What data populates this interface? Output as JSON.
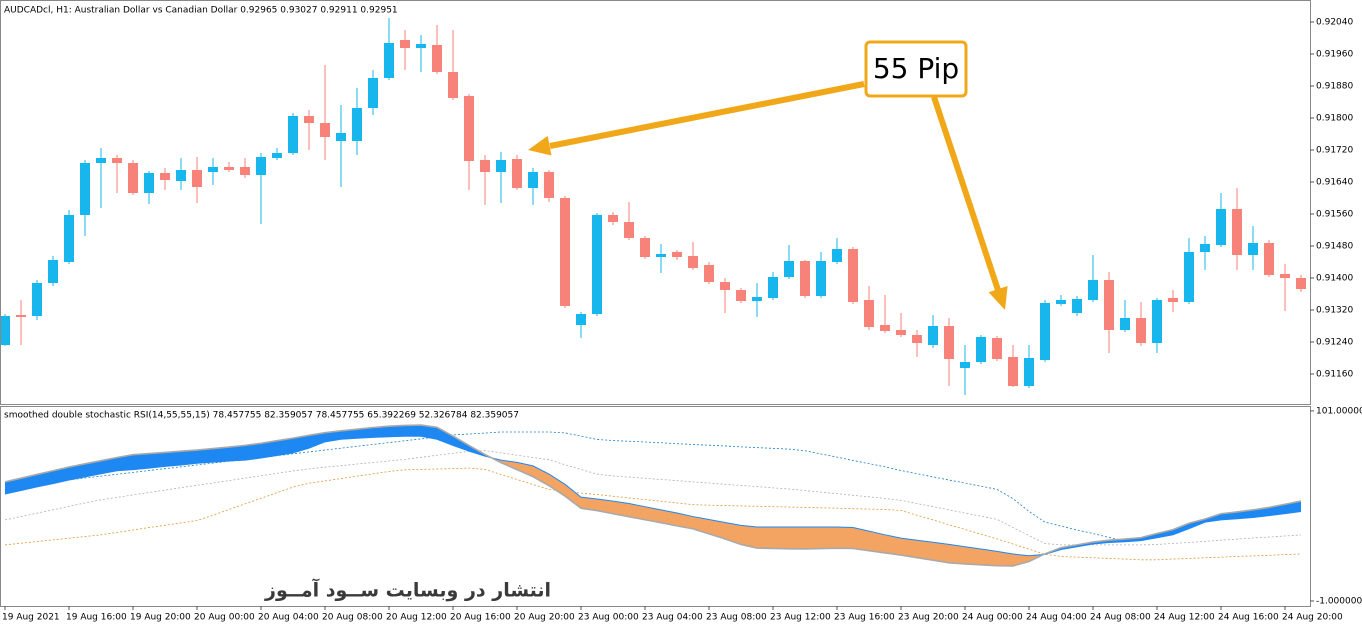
{
  "chart_data": [
    {
      "type": "candlestick",
      "title": "AUDCADcl, H1:  Australian Dollar vs Canadian Dollar  0.92965 0.93027 0.92911 0.92951",
      "annotations": [
        "55 Pip",
        "انتشار در وبسایت  ســود آمــوز"
      ],
      "categories": [
        "19 Aug 2021",
        null,
        null,
        null,
        "19 Aug 16:00",
        null,
        null,
        null,
        "19 Aug 20:00",
        null,
        null,
        null,
        "20 Aug 00:00",
        null,
        null,
        null,
        "20 Aug 04:00",
        null,
        null,
        null,
        "20 Aug 08:00",
        null,
        null,
        null,
        "20 Aug 12:00",
        null,
        null,
        null,
        "20 Aug 16:00",
        null,
        null,
        null,
        "20 Aug 20:00",
        null,
        null,
        null,
        "23 Aug 00:00",
        null,
        null,
        null,
        "23 Aug 04:00",
        null,
        null,
        null,
        "23 Aug 08:00",
        null,
        null,
        null,
        "23 Aug 12:00",
        null,
        null,
        null,
        "23 Aug 16:00",
        null,
        null,
        null,
        "23 Aug 20:00",
        null,
        null,
        null,
        "24 Aug 00:00",
        null,
        null,
        null,
        "24 Aug 04:00",
        null,
        null,
        null,
        "24 Aug 08:00",
        null,
        null,
        null,
        "24 Aug 12:00",
        null,
        null,
        null,
        "24 Aug 16:00",
        null,
        null,
        null,
        "24 Aug 20:00",
        null
      ],
      "open": [
        0.912325,
        0.913075,
        0.91305,
        0.913875,
        0.9144,
        0.915575,
        0.916875,
        0.917,
        0.916875,
        0.916125,
        0.916625,
        0.916425,
        0.9167,
        0.91665,
        0.916775,
        0.916775,
        0.916575,
        0.917,
        0.917125,
        0.91805,
        0.917875,
        0.917425,
        0.917425,
        0.91825,
        0.919,
        0.91995,
        0.91975,
        0.919825,
        0.91915,
        0.91855,
        0.91695,
        0.91665,
        0.916975,
        0.91625,
        0.91665,
        0.916,
        0.912825,
        0.9131,
        0.915575,
        0.9154,
        0.915,
        0.914525,
        0.91465,
        0.91455,
        0.914325,
        0.9139,
        0.9137,
        0.913425,
        0.9135,
        0.914025,
        0.914425,
        0.91355,
        0.9144,
        0.914725,
        0.91345,
        0.912825,
        0.9127,
        0.912575,
        0.912325,
        0.9128,
        0.91175,
        0.9119,
        0.9125,
        0.912025,
        0.9113,
        0.91195,
        0.91335,
        0.913125,
        0.91345,
        0.91395,
        0.9127,
        0.913,
        0.912375,
        0.9135,
        0.9134,
        0.91465,
        0.914825,
        0.915725,
        0.914575,
        0.914875,
        0.9141,
        0.914
      ],
      "high": [
        0.9131,
        0.91345,
        0.91395,
        0.91455,
        0.9157,
        0.91695,
        0.91725,
        0.917075,
        0.91695,
        0.916675,
        0.91675,
        0.917,
        0.917025,
        0.917,
        0.9169,
        0.917,
        0.917125,
        0.91725,
        0.918125,
        0.9182,
        0.919325,
        0.918325,
        0.91875,
        0.9192,
        0.9205,
        0.9202,
        0.920075,
        0.920325,
        0.9202,
        0.9186,
        0.917075,
        0.91715,
        0.917075,
        0.91675,
        0.9167,
        0.91605,
        0.91315,
        0.915625,
        0.91565,
        0.9159,
        0.91505,
        0.91485,
        0.9147,
        0.9149,
        0.9144,
        0.914,
        0.91375,
        0.913875,
        0.91415,
        0.914825,
        0.91445,
        0.91465,
        0.915,
        0.914775,
        0.9138,
        0.913575,
        0.913125,
        0.9127,
        0.913075,
        0.913,
        0.912325,
        0.912575,
        0.91255,
        0.912325,
        0.912325,
        0.91345,
        0.913575,
        0.91355,
        0.914575,
        0.91415,
        0.91345,
        0.9134,
        0.9135,
        0.9137,
        0.915,
        0.91505,
        0.916125,
        0.91625,
        0.9153,
        0.91495,
        0.91435,
        0.914075
      ],
      "low": [
        0.9123,
        0.912325,
        0.91295,
        0.9138,
        0.91435,
        0.91505,
        0.91575,
        0.916125,
        0.916075,
        0.91585,
        0.9162,
        0.9162,
        0.915875,
        0.916325,
        0.91665,
        0.9165,
        0.91535,
        0.91695,
        0.917075,
        0.9172,
        0.91695,
        0.916275,
        0.917075,
        0.918075,
        0.91895,
        0.9192,
        0.91915,
        0.9191,
        0.91845,
        0.9162,
        0.915825,
        0.915875,
        0.9162,
        0.915825,
        0.9159,
        0.91325,
        0.9125,
        0.91305,
        0.915325,
        0.91495,
        0.914475,
        0.914125,
        0.91445,
        0.9142,
        0.91385,
        0.913125,
        0.913375,
        0.913025,
        0.91345,
        0.913975,
        0.9135,
        0.9135,
        0.91435,
        0.91335,
        0.9127,
        0.912625,
        0.912525,
        0.912025,
        0.91225,
        0.9113,
        0.911075,
        0.91185,
        0.911925,
        0.911275,
        0.91125,
        0.9119,
        0.9133,
        0.91305,
        0.9134,
        0.912125,
        0.91265,
        0.9123,
        0.912125,
        0.91315,
        0.91335,
        0.9142,
        0.914775,
        0.9142,
        0.9142,
        0.914025,
        0.913175,
        0.91365
      ],
      "close": [
        0.91305,
        0.913025,
        0.913875,
        0.91445,
        0.915575,
        0.916875,
        0.917,
        0.916875,
        0.916125,
        0.916625,
        0.91645,
        0.9167,
        0.916275,
        0.916775,
        0.9167,
        0.916575,
        0.917025,
        0.917125,
        0.91805,
        0.917875,
        0.917525,
        0.917625,
        0.91825,
        0.919,
        0.919875,
        0.91975,
        0.91985,
        0.91915,
        0.9185,
        0.916925,
        0.91665,
        0.91695,
        0.91625,
        0.91665,
        0.916,
        0.9133,
        0.9131,
        0.915575,
        0.9154,
        0.915,
        0.914525,
        0.9146,
        0.914525,
        0.91425,
        0.9139,
        0.9137,
        0.913425,
        0.913525,
        0.914025,
        0.914425,
        0.91355,
        0.914425,
        0.914725,
        0.9134,
        0.912775,
        0.912675,
        0.912575,
        0.912375,
        0.9128,
        0.911975,
        0.9119,
        0.912525,
        0.911975,
        0.9113,
        0.912,
        0.913375,
        0.91345,
        0.913475,
        0.91395,
        0.9127,
        0.913,
        0.912375,
        0.91345,
        0.9134,
        0.91465,
        0.91485,
        0.915725,
        0.914575,
        0.914875,
        0.914075,
        0.914,
        0.913725
      ],
      "up_color": "#17b6ec",
      "down_color": "#f7827a",
      "ylim": [
        0.91085,
        0.92095
      ],
      "yticks": [
        {
          "value": 0.9204,
          "label": "0.92040"
        },
        {
          "value": 0.9196,
          "label": "0.91960"
        },
        {
          "value": 0.9188,
          "label": "0.91880"
        },
        {
          "value": 0.918,
          "label": "0.91800"
        },
        {
          "value": 0.9172,
          "label": "0.91720"
        },
        {
          "value": 0.9164,
          "label": "0.91640"
        },
        {
          "value": 0.9156,
          "label": "0.91560"
        },
        {
          "value": 0.9148,
          "label": "0.91480"
        },
        {
          "value": 0.914,
          "label": "0.91400"
        },
        {
          "value": 0.9132,
          "label": "0.91320"
        },
        {
          "value": 0.9124,
          "label": "0.91240"
        },
        {
          "value": 0.9116,
          "label": "0.91160"
        }
      ],
      "grid": false
    },
    {
      "type": "band",
      "title": "smoothed double stochastic RSI(14,55,55,15) 78.457755 82.359057 78.457755 65.392269 52.326784 82.359057",
      "ylim": [
        -3.7,
        103.1
      ],
      "yticks": [
        {
          "value": 101,
          "label": "101.000000"
        },
        {
          "value": -1,
          "label": "-1.000000"
        }
      ],
      "fill_up": "#1e88f2",
      "fill_down": "#f4a462",
      "band_series": [
        {
          "color": "#a9a9a9",
          "values": [
            62.9,
            64.9,
            66.9,
            68.9,
            70.9,
            72.6,
            74.3,
            76.0,
            77.5,
            78.1,
            78.7,
            79.4,
            80.0,
            80.8,
            81.6,
            82.5,
            83.6,
            85.0,
            86.4,
            87.9,
            89.3,
            90.3,
            91.2,
            92.1,
            92.8,
            93.2,
            93.4,
            92.2,
            87.5,
            82.5,
            77.6,
            73.2,
            69.5,
            65.7,
            60.9,
            55.3,
            48.8,
            47.5,
            45.8,
            44.2,
            42.6,
            41.0,
            39.3,
            37.7,
            35.0,
            32.3,
            29.3,
            27.4,
            27.2,
            27.0,
            26.9,
            27.1,
            27.3,
            27.2,
            26.0,
            24.8,
            23.6,
            22.2,
            20.9,
            19.5,
            18.9,
            18.4,
            17.9,
            17.8,
            20.2,
            24.3,
            27.6,
            29.1,
            30.6,
            31.6,
            32.2,
            33.0,
            35.2,
            37.3,
            40.7,
            43.0,
            45.8,
            46.8,
            47.9,
            49.2,
            50.9,
            52.6
          ]
        },
        {
          "color": "#1e88f2",
          "values": [
            56.4,
            58.3,
            60.2,
            62.0,
            63.9,
            65.6,
            67.3,
            68.9,
            69.5,
            70.3,
            71.2,
            72.0,
            72.9,
            73.5,
            74.1,
            74.6,
            75.7,
            77.1,
            78.5,
            81.0,
            84.4,
            85.8,
            86.3,
            86.8,
            87.1,
            87.4,
            87.4,
            85.8,
            82.5,
            79.4,
            76.7,
            74.6,
            73.4,
            71.5,
            67.1,
            61.6,
            54.7,
            53.7,
            52.6,
            51.3,
            49.6,
            47.9,
            46.2,
            44.3,
            42.7,
            41.1,
            39.6,
            38.7,
            38.7,
            38.7,
            38.7,
            38.7,
            38.7,
            38.4,
            36.5,
            34.5,
            32.7,
            31.6,
            30.5,
            29.4,
            28.1,
            26.9,
            25.6,
            24.2,
            23.3,
            24.0,
            26.6,
            28.1,
            29.6,
            30.4,
            30.8,
            31.4,
            32.9,
            34.5,
            37.8,
            41.3,
            42.5,
            43.1,
            43.8,
            44.8,
            45.9,
            47.0
          ]
        }
      ],
      "series": [
        {
          "color": "#1f7fc4",
          "values": [
            60,
            61,
            62,
            63,
            64,
            65,
            66,
            67,
            68,
            69,
            70,
            71,
            72,
            73,
            74,
            75,
            76,
            77,
            78,
            79,
            80,
            81,
            82,
            83,
            84,
            85,
            86,
            87,
            88.1,
            88.6,
            89.1,
            89.7,
            89.7,
            89.7,
            89.7,
            89.2,
            87.5,
            85.7,
            85.1,
            84.7,
            84.3,
            83.9,
            83.4,
            83.0,
            82.6,
            82.2,
            81.7,
            81.3,
            80.9,
            80.5,
            79.6,
            77.9,
            76.2,
            74.4,
            72.7,
            71.0,
            69.0,
            67.3,
            65.6,
            63.9,
            62.3,
            60.6,
            58.9,
            53.9,
            47.1,
            41.3,
            39.2,
            37.1,
            35.2,
            33.1,
            31.3,
            32.0,
            33.0,
            35.5,
            38.5,
            41.5,
            43.0,
            43.8,
            44.5,
            45.5,
            46.5,
            47.5
          ]
        },
        {
          "color": "#b0b0b0",
          "values": [
            42.5,
            44.3,
            46.1,
            47.9,
            49.8,
            51.6,
            53.3,
            54.6,
            55.9,
            57.2,
            58.5,
            59.8,
            61.1,
            62.3,
            63.6,
            64.9,
            66.2,
            67.5,
            68.8,
            69.9,
            70.8,
            71.6,
            72.5,
            73.3,
            74.1,
            75.0,
            76.1,
            77.2,
            78.3,
            79.3,
            79.7,
            78.5,
            77.2,
            76.0,
            74.8,
            72.1,
            69.6,
            67.1,
            66.1,
            65.5,
            64.8,
            64.2,
            63.6,
            62.9,
            62.3,
            61.6,
            61.0,
            60.4,
            59.7,
            59.1,
            58.3,
            57.4,
            56.6,
            55.7,
            54.9,
            54.0,
            53.0,
            51.3,
            49.6,
            47.9,
            46.2,
            44.5,
            42.8,
            38.4,
            34.1,
            29.8,
            29.1,
            29.1,
            29.1,
            29.1,
            29.1,
            29.1,
            29.3,
            29.9,
            30.4,
            31.0,
            31.6,
            32.2,
            32.8,
            33.3,
            33.9,
            34.4
          ]
        },
        {
          "color": "#e0953a",
          "values": [
            29.1,
            30.0,
            30.9,
            31.8,
            32.7,
            33.6,
            34.5,
            35.8,
            37.1,
            38.4,
            39.6,
            40.9,
            42.2,
            45.0,
            48.1,
            51.1,
            54.1,
            57.1,
            60.1,
            62.2,
            63.4,
            64.7,
            66.0,
            67.2,
            68.5,
            69.4,
            69.6,
            69.8,
            70.0,
            70.3,
            69.6,
            66.9,
            64.2,
            61.5,
            58.9,
            57.8,
            56.9,
            56.1,
            55.2,
            54.3,
            53.4,
            52.5,
            51.6,
            50.7,
            50.4,
            50.2,
            50.0,
            49.8,
            49.6,
            49.4,
            49.2,
            49.0,
            48.8,
            48.5,
            48.3,
            48.1,
            47.6,
            45.0,
            42.5,
            39.9,
            37.4,
            34.8,
            32.3,
            29.6,
            26.8,
            24.0,
            22.9,
            22.5,
            22.2,
            21.8,
            21.5,
            21.1,
            21.1,
            21.5,
            21.8,
            22.2,
            22.5,
            22.9,
            23.2,
            23.5,
            23.9,
            24.2
          ]
        }
      ]
    }
  ]
}
